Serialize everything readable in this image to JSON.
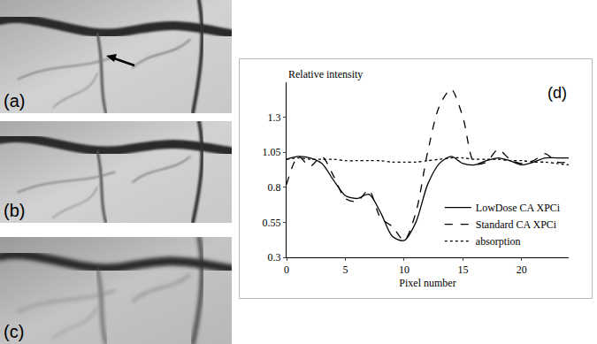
{
  "panels": {
    "labels": [
      "(a)",
      "(b)",
      "(c)"
    ]
  },
  "chart_data": {
    "type": "line",
    "annotations": [
      {
        "text": "(d)"
      }
    ],
    "xlabel": "Pixel number",
    "ylabel": "Relative intensity",
    "x": [
      0,
      1,
      2,
      3,
      4,
      5,
      6,
      7,
      8,
      9,
      10,
      11,
      12,
      13,
      14,
      15,
      16,
      17,
      18,
      19,
      20,
      21,
      22,
      23,
      24
    ],
    "series": [
      {
        "name": "LowDose CA XPCi",
        "color": "#000000",
        "line_style": "solid",
        "values": [
          1.0,
          1.02,
          1.01,
          0.97,
          0.85,
          0.74,
          0.72,
          0.75,
          0.62,
          0.45,
          0.42,
          0.55,
          0.82,
          0.97,
          1.02,
          0.97,
          0.96,
          0.99,
          1.01,
          0.99,
          0.96,
          0.98,
          1.01,
          1.01,
          1.01
        ]
      },
      {
        "name": "Standard CA XPCi",
        "color": "#000000",
        "line_style": "dash",
        "values": [
          0.82,
          1.02,
          0.95,
          1.02,
          0.88,
          0.72,
          0.7,
          0.78,
          0.58,
          0.52,
          0.42,
          0.62,
          1.05,
          1.38,
          1.5,
          1.3,
          0.97,
          0.98,
          1.07,
          1.0,
          0.97,
          0.99,
          1.04,
          0.98,
          0.98
        ]
      },
      {
        "name": "absorption",
        "color": "#000000",
        "line_style": "dot",
        "values": [
          1.0,
          1.01,
          1.0,
          1.0,
          1.0,
          0.99,
          0.99,
          0.99,
          0.99,
          0.98,
          0.98,
          0.98,
          0.99,
          1.0,
          1.01,
          1.01,
          1.0,
          1.0,
          1.0,
          0.99,
          0.99,
          0.98,
          0.98,
          0.97,
          0.96
        ]
      }
    ],
    "xlim": [
      0,
      24
    ],
    "xticks": [
      0,
      5,
      10,
      15,
      20
    ],
    "ylim": [
      0.3,
      1.55
    ],
    "yticks": [
      0.3,
      0.55,
      0.8,
      1.05,
      1.3
    ],
    "grid": false,
    "legend": "bottom right"
  }
}
